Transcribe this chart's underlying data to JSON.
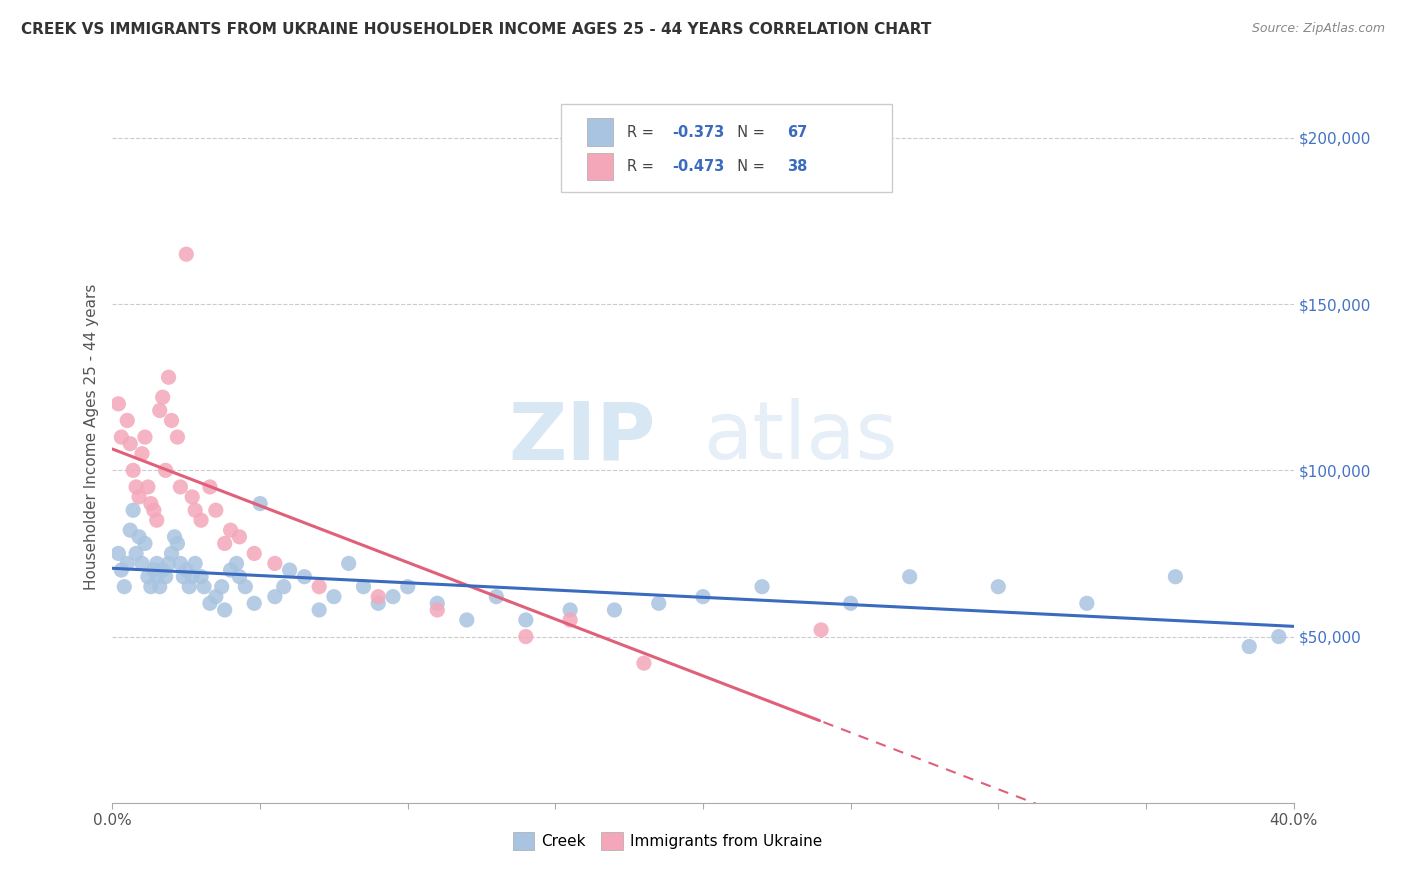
{
  "title": "CREEK VS IMMIGRANTS FROM UKRAINE HOUSEHOLDER INCOME AGES 25 - 44 YEARS CORRELATION CHART",
  "source": "Source: ZipAtlas.com",
  "ylabel": "Householder Income Ages 25 - 44 years",
  "x_min": 0.0,
  "x_max": 0.4,
  "y_min": 0,
  "y_max": 220000,
  "x_ticks": [
    0.0,
    0.05,
    0.1,
    0.15,
    0.2,
    0.25,
    0.3,
    0.35,
    0.4
  ],
  "x_tick_labels": [
    "0.0%",
    "",
    "",
    "",
    "",
    "",
    "",
    "",
    "40.0%"
  ],
  "y_ticks": [
    0,
    50000,
    100000,
    150000,
    200000
  ],
  "y_tick_labels_right": [
    "",
    "$50,000",
    "$100,000",
    "$150,000",
    "$200,000"
  ],
  "creek_color": "#a8c4e0",
  "ukraine_color": "#f4a7b9",
  "creek_line_color": "#3a6bbf",
  "ukraine_line_color": "#e0607a",
  "creek_R": -0.373,
  "creek_N": 67,
  "ukraine_R": -0.473,
  "ukraine_N": 38,
  "legend_label_creek": "Creek",
  "legend_label_ukraine": "Immigrants from Ukraine",
  "creek_x": [
    0.002,
    0.003,
    0.004,
    0.005,
    0.006,
    0.007,
    0.008,
    0.009,
    0.01,
    0.011,
    0.012,
    0.013,
    0.014,
    0.015,
    0.015,
    0.016,
    0.017,
    0.018,
    0.019,
    0.02,
    0.021,
    0.022,
    0.023,
    0.024,
    0.025,
    0.026,
    0.027,
    0.028,
    0.03,
    0.031,
    0.033,
    0.035,
    0.037,
    0.038,
    0.04,
    0.042,
    0.043,
    0.045,
    0.048,
    0.05,
    0.055,
    0.058,
    0.06,
    0.065,
    0.07,
    0.075,
    0.08,
    0.085,
    0.09,
    0.095,
    0.1,
    0.11,
    0.12,
    0.13,
    0.14,
    0.155,
    0.17,
    0.185,
    0.2,
    0.22,
    0.25,
    0.27,
    0.3,
    0.33,
    0.36,
    0.385,
    0.395
  ],
  "creek_y": [
    75000,
    70000,
    65000,
    72000,
    82000,
    88000,
    75000,
    80000,
    72000,
    78000,
    68000,
    65000,
    70000,
    72000,
    68000,
    65000,
    70000,
    68000,
    72000,
    75000,
    80000,
    78000,
    72000,
    68000,
    70000,
    65000,
    68000,
    72000,
    68000,
    65000,
    60000,
    62000,
    65000,
    58000,
    70000,
    72000,
    68000,
    65000,
    60000,
    90000,
    62000,
    65000,
    70000,
    68000,
    58000,
    62000,
    72000,
    65000,
    60000,
    62000,
    65000,
    60000,
    55000,
    62000,
    55000,
    58000,
    58000,
    60000,
    62000,
    65000,
    60000,
    68000,
    65000,
    60000,
    68000,
    47000,
    50000
  ],
  "ukraine_x": [
    0.002,
    0.003,
    0.005,
    0.006,
    0.007,
    0.008,
    0.009,
    0.01,
    0.011,
    0.012,
    0.013,
    0.014,
    0.015,
    0.016,
    0.017,
    0.018,
    0.019,
    0.02,
    0.022,
    0.023,
    0.025,
    0.027,
    0.028,
    0.03,
    0.033,
    0.035,
    0.038,
    0.04,
    0.043,
    0.048,
    0.055,
    0.07,
    0.09,
    0.11,
    0.14,
    0.155,
    0.18,
    0.24
  ],
  "ukraine_y": [
    120000,
    110000,
    115000,
    108000,
    100000,
    95000,
    92000,
    105000,
    110000,
    95000,
    90000,
    88000,
    85000,
    118000,
    122000,
    100000,
    128000,
    115000,
    110000,
    95000,
    165000,
    92000,
    88000,
    85000,
    95000,
    88000,
    78000,
    82000,
    80000,
    75000,
    72000,
    65000,
    62000,
    58000,
    50000,
    55000,
    42000,
    52000
  ]
}
